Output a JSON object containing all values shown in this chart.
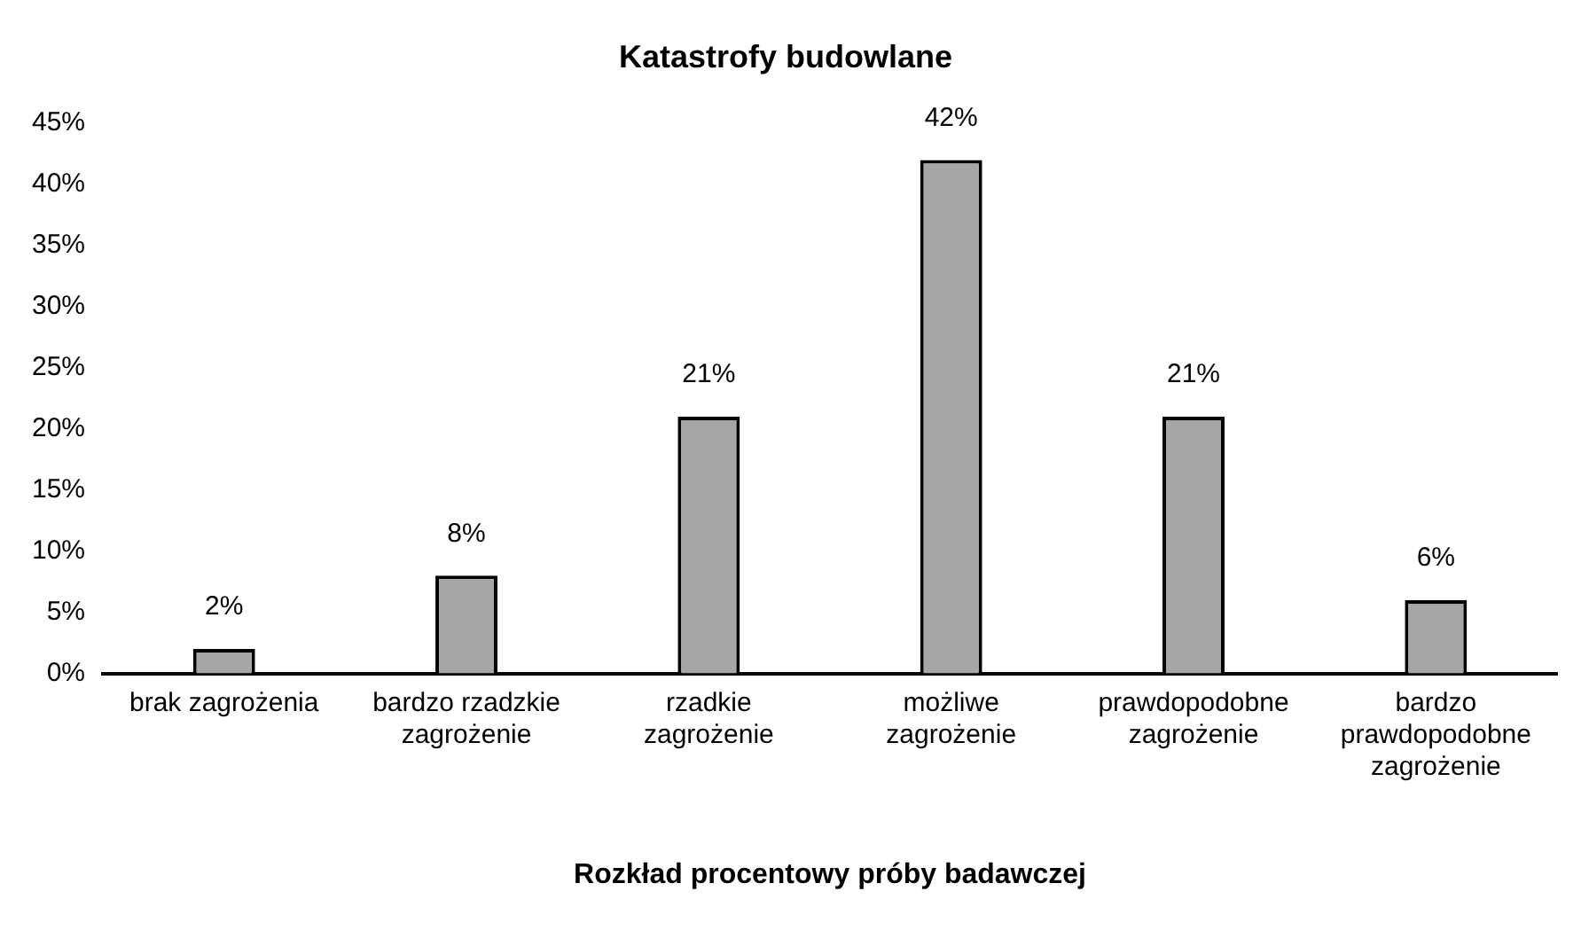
{
  "chart_data": {
    "type": "bar",
    "title": "Katastrofy budowlane",
    "xlabel": "Rozkład procentowy próby badawczej",
    "categories": [
      "brak zagrożenia",
      "bardzo rzadzkie zagrożenie",
      "rzadkie zagrożenie",
      "możliwe zagrożenie",
      "prawdopodobne zagrożenie",
      "bardzo prawdopodobne zagrożenie"
    ],
    "values": [
      2,
      8,
      21,
      42,
      21,
      6
    ],
    "value_labels": [
      "2%",
      "8%",
      "21%",
      "42%",
      "21%",
      "6%"
    ],
    "color": "#a6a6a8",
    "ylim": [
      0,
      45
    ],
    "yticks": [
      {
        "value": 0,
        "label": "0%"
      },
      {
        "value": 5,
        "label": "5%"
      },
      {
        "value": 10,
        "label": "10%"
      },
      {
        "value": 15,
        "label": "15%"
      },
      {
        "value": 20,
        "label": "20%"
      },
      {
        "value": 25,
        "label": "25%"
      },
      {
        "value": 30,
        "label": "30%"
      },
      {
        "value": 35,
        "label": "35%"
      },
      {
        "value": 40,
        "label": "40%"
      },
      {
        "value": 45,
        "label": "45%"
      }
    ],
    "grid": false,
    "legend": false
  }
}
